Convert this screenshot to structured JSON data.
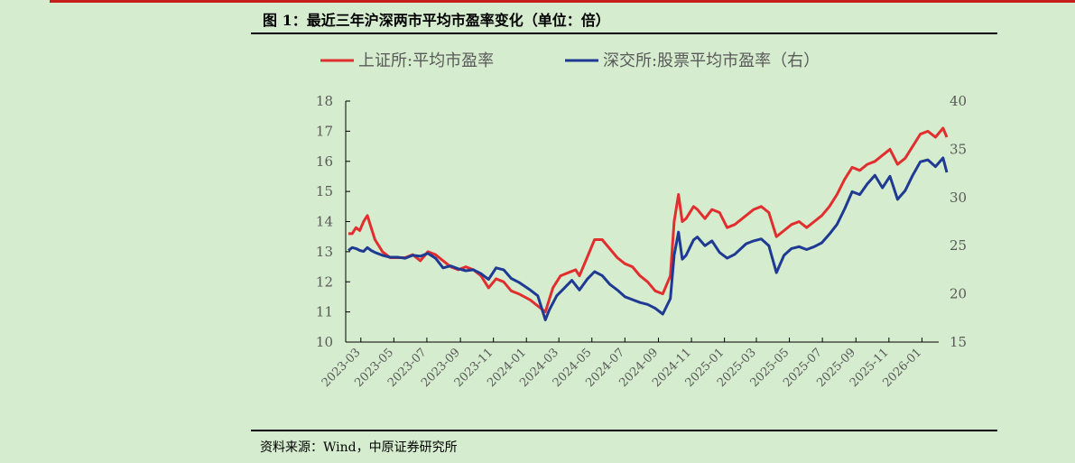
{
  "figure": {
    "title": "图 1：最近三年沪深两市平均市盈率变化（单位：倍）",
    "source": "资料来源：Wind，中原证券研究所"
  },
  "chart_data": {
    "type": "line",
    "title": "",
    "xlabel": "",
    "ylabel": "",
    "y2label": "",
    "ylim": [
      10,
      18
    ],
    "y2lim": [
      15,
      40
    ],
    "yticks": [
      10,
      11,
      12,
      13,
      14,
      15,
      16,
      17,
      18
    ],
    "y2ticks": [
      15,
      20,
      25,
      30,
      35,
      40
    ],
    "x_range": [
      "2023-02",
      "2026-02"
    ],
    "xticks": [
      "2023-03",
      "2023-05",
      "2023-07",
      "2023-09",
      "2023-11",
      "2024-01",
      "2024-03",
      "2024-05",
      "2024-07",
      "2024-09",
      "2024-11",
      "2025-01",
      "2025-03",
      "2025-05",
      "2025-07",
      "2025-09",
      "2025-11",
      "2026-01"
    ],
    "legend_position": "top",
    "grid": false,
    "series": [
      {
        "name": "上证所:平均市盈率",
        "axis": "left",
        "color": "#e12e2e",
        "points": [
          [
            "2023-02-06",
            13.6
          ],
          [
            "2023-02-13",
            13.6
          ],
          [
            "2023-02-20",
            13.8
          ],
          [
            "2023-02-27",
            13.7
          ],
          [
            "2023-03-06",
            14.0
          ],
          [
            "2023-03-13",
            14.2
          ],
          [
            "2023-03-20",
            13.8
          ],
          [
            "2023-03-27",
            13.4
          ],
          [
            "2023-04-03",
            13.2
          ],
          [
            "2023-04-10",
            13.0
          ],
          [
            "2023-04-17",
            12.9
          ],
          [
            "2023-04-24",
            12.8
          ],
          [
            "2023-05-08",
            12.8
          ],
          [
            "2023-05-22",
            12.8
          ],
          [
            "2023-06-05",
            12.9
          ],
          [
            "2023-06-19",
            12.7
          ],
          [
            "2023-07-03",
            13.0
          ],
          [
            "2023-07-17",
            12.9
          ],
          [
            "2023-07-31",
            12.7
          ],
          [
            "2023-08-14",
            12.5
          ],
          [
            "2023-08-28",
            12.4
          ],
          [
            "2023-09-11",
            12.5
          ],
          [
            "2023-09-25",
            12.4
          ],
          [
            "2023-10-09",
            12.2
          ],
          [
            "2023-10-23",
            11.8
          ],
          [
            "2023-11-06",
            12.1
          ],
          [
            "2023-11-20",
            12.0
          ],
          [
            "2023-12-04",
            11.7
          ],
          [
            "2023-12-18",
            11.6
          ],
          [
            "2024-01-08",
            11.4
          ],
          [
            "2024-01-22",
            11.2
          ],
          [
            "2024-02-05",
            11.0
          ],
          [
            "2024-02-19",
            11.8
          ],
          [
            "2024-03-04",
            12.2
          ],
          [
            "2024-03-18",
            12.3
          ],
          [
            "2024-04-01",
            12.4
          ],
          [
            "2024-04-08",
            12.2
          ],
          [
            "2024-04-22",
            12.8
          ],
          [
            "2024-05-06",
            13.4
          ],
          [
            "2024-05-20",
            13.4
          ],
          [
            "2024-06-03",
            13.1
          ],
          [
            "2024-06-17",
            12.8
          ],
          [
            "2024-07-01",
            12.6
          ],
          [
            "2024-07-15",
            12.5
          ],
          [
            "2024-07-29",
            12.2
          ],
          [
            "2024-08-12",
            12.0
          ],
          [
            "2024-08-26",
            11.7
          ],
          [
            "2024-09-09",
            11.6
          ],
          [
            "2024-09-23",
            12.2
          ],
          [
            "2024-09-30",
            14.0
          ],
          [
            "2024-10-08",
            14.9
          ],
          [
            "2024-10-15",
            14.0
          ],
          [
            "2024-10-22",
            14.1
          ],
          [
            "2024-11-05",
            14.5
          ],
          [
            "2024-11-12",
            14.4
          ],
          [
            "2024-11-26",
            14.1
          ],
          [
            "2024-12-09",
            14.4
          ],
          [
            "2024-12-23",
            14.3
          ],
          [
            "2025-01-06",
            13.8
          ],
          [
            "2025-01-20",
            13.9
          ],
          [
            "2025-02-10",
            14.2
          ],
          [
            "2025-02-24",
            14.4
          ],
          [
            "2025-03-10",
            14.5
          ],
          [
            "2025-03-24",
            14.3
          ],
          [
            "2025-04-07",
            13.5
          ],
          [
            "2025-04-21",
            13.7
          ],
          [
            "2025-05-05",
            13.9
          ],
          [
            "2025-05-19",
            14.0
          ],
          [
            "2025-06-02",
            13.8
          ],
          [
            "2025-06-16",
            14.0
          ],
          [
            "2025-06-30",
            14.2
          ],
          [
            "2025-07-14",
            14.5
          ],
          [
            "2025-07-28",
            14.9
          ],
          [
            "2025-08-11",
            15.4
          ],
          [
            "2025-08-25",
            15.8
          ],
          [
            "2025-09-08",
            15.7
          ],
          [
            "2025-09-22",
            15.9
          ],
          [
            "2025-10-06",
            16.0
          ],
          [
            "2025-10-20",
            16.2
          ],
          [
            "2025-11-03",
            16.4
          ],
          [
            "2025-11-17",
            15.9
          ],
          [
            "2025-12-01",
            16.1
          ],
          [
            "2025-12-15",
            16.5
          ],
          [
            "2025-12-29",
            16.9
          ],
          [
            "2026-01-12",
            17.0
          ],
          [
            "2026-01-26",
            16.8
          ],
          [
            "2026-02-09",
            17.1
          ],
          [
            "2026-02-16",
            16.8
          ]
        ]
      },
      {
        "name": "深交所:股票平均市盈率（右）",
        "axis": "right",
        "color": "#1f3a93",
        "points": [
          [
            "2023-02-06",
            24.5
          ],
          [
            "2023-02-13",
            24.8
          ],
          [
            "2023-02-20",
            24.7
          ],
          [
            "2023-02-27",
            24.5
          ],
          [
            "2023-03-06",
            24.4
          ],
          [
            "2023-03-13",
            24.8
          ],
          [
            "2023-03-20",
            24.5
          ],
          [
            "2023-03-27",
            24.3
          ],
          [
            "2023-04-10",
            24.0
          ],
          [
            "2023-04-24",
            23.8
          ],
          [
            "2023-05-08",
            23.8
          ],
          [
            "2023-05-22",
            23.7
          ],
          [
            "2023-06-05",
            24.0
          ],
          [
            "2023-06-19",
            23.9
          ],
          [
            "2023-07-03",
            24.2
          ],
          [
            "2023-07-17",
            23.7
          ],
          [
            "2023-07-31",
            22.7
          ],
          [
            "2023-08-14",
            22.9
          ],
          [
            "2023-08-28",
            22.6
          ],
          [
            "2023-09-11",
            22.4
          ],
          [
            "2023-09-25",
            22.5
          ],
          [
            "2023-10-09",
            22.1
          ],
          [
            "2023-10-23",
            21.5
          ],
          [
            "2023-11-06",
            22.7
          ],
          [
            "2023-11-20",
            22.5
          ],
          [
            "2023-12-04",
            21.6
          ],
          [
            "2023-12-18",
            21.2
          ],
          [
            "2024-01-08",
            20.4
          ],
          [
            "2024-01-22",
            19.8
          ],
          [
            "2024-02-05",
            17.3
          ],
          [
            "2024-02-12",
            18.3
          ],
          [
            "2024-02-26",
            19.8
          ],
          [
            "2024-03-11",
            20.6
          ],
          [
            "2024-03-25",
            21.4
          ],
          [
            "2024-04-08",
            20.4
          ],
          [
            "2024-04-22",
            21.5
          ],
          [
            "2024-05-06",
            22.3
          ],
          [
            "2024-05-20",
            21.9
          ],
          [
            "2024-06-03",
            21.0
          ],
          [
            "2024-06-17",
            20.4
          ],
          [
            "2024-07-01",
            19.7
          ],
          [
            "2024-07-15",
            19.4
          ],
          [
            "2024-07-29",
            19.1
          ],
          [
            "2024-08-12",
            18.9
          ],
          [
            "2024-08-26",
            18.5
          ],
          [
            "2024-09-09",
            17.9
          ],
          [
            "2024-09-23",
            19.5
          ],
          [
            "2024-09-30",
            24.0
          ],
          [
            "2024-10-08",
            26.4
          ],
          [
            "2024-10-15",
            23.6
          ],
          [
            "2024-10-22",
            24.0
          ],
          [
            "2024-11-05",
            25.6
          ],
          [
            "2024-11-12",
            25.9
          ],
          [
            "2024-11-26",
            25.0
          ],
          [
            "2024-12-09",
            25.5
          ],
          [
            "2024-12-23",
            24.3
          ],
          [
            "2025-01-06",
            23.7
          ],
          [
            "2025-01-20",
            24.1
          ],
          [
            "2025-02-10",
            25.2
          ],
          [
            "2025-02-24",
            25.5
          ],
          [
            "2025-03-10",
            25.7
          ],
          [
            "2025-03-24",
            25.0
          ],
          [
            "2025-04-07",
            22.2
          ],
          [
            "2025-04-21",
            24.0
          ],
          [
            "2025-05-05",
            24.7
          ],
          [
            "2025-05-19",
            24.9
          ],
          [
            "2025-06-02",
            24.6
          ],
          [
            "2025-06-16",
            24.9
          ],
          [
            "2025-06-30",
            25.3
          ],
          [
            "2025-07-14",
            26.2
          ],
          [
            "2025-07-28",
            27.2
          ],
          [
            "2025-08-11",
            28.8
          ],
          [
            "2025-08-25",
            30.6
          ],
          [
            "2025-09-08",
            30.3
          ],
          [
            "2025-09-22",
            31.4
          ],
          [
            "2025-10-06",
            32.3
          ],
          [
            "2025-10-20",
            31.0
          ],
          [
            "2025-11-03",
            32.2
          ],
          [
            "2025-11-17",
            29.8
          ],
          [
            "2025-12-01",
            30.7
          ],
          [
            "2025-12-15",
            32.3
          ],
          [
            "2025-12-29",
            33.7
          ],
          [
            "2026-01-12",
            33.9
          ],
          [
            "2026-01-26",
            33.2
          ],
          [
            "2026-02-09",
            34.1
          ],
          [
            "2026-02-16",
            32.6
          ]
        ]
      }
    ]
  }
}
